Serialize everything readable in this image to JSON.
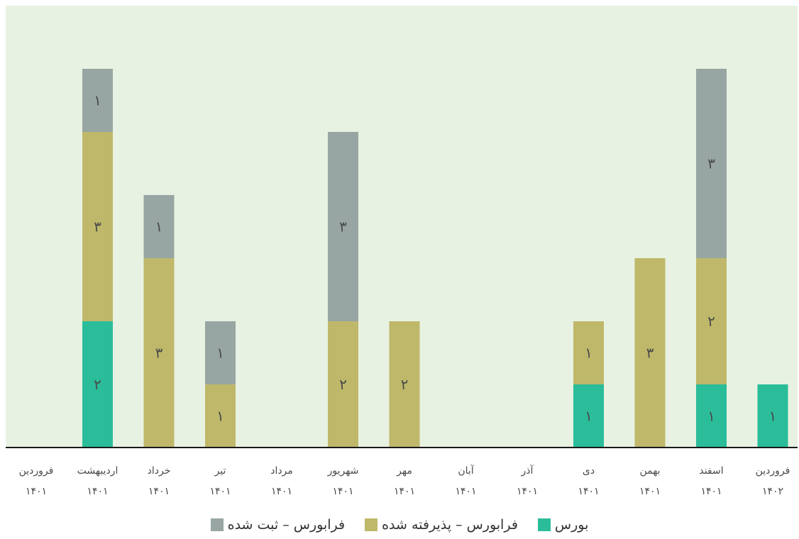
{
  "chart_data": {
    "type": "bar",
    "stacked": true,
    "title": "",
    "xlabel": "",
    "ylabel": "",
    "ylim": [
      0,
      6
    ],
    "grid": false,
    "legend_position": "bottom",
    "categories": [
      {
        "month": "فروردین",
        "year": "۱۴۰۱"
      },
      {
        "month": "اردیبهشت",
        "year": "۱۴۰۱"
      },
      {
        "month": "خرداد",
        "year": "۱۴۰۱"
      },
      {
        "month": "تیر",
        "year": "۱۴۰۱"
      },
      {
        "month": "مرداد",
        "year": "۱۴۰۱"
      },
      {
        "month": "شهریور",
        "year": "۱۴۰۱"
      },
      {
        "month": "مهر",
        "year": "۱۴۰۱"
      },
      {
        "month": "آبان",
        "year": "۱۴۰۱"
      },
      {
        "month": "آذر",
        "year": "۱۴۰۱"
      },
      {
        "month": "دی",
        "year": "۱۴۰۱"
      },
      {
        "month": "بهمن",
        "year": "۱۴۰۱"
      },
      {
        "month": "اسفند",
        "year": "۱۴۰۱"
      },
      {
        "month": "فروردین",
        "year": "۱۴۰۲"
      }
    ],
    "series": [
      {
        "name": "بورس",
        "color": "#2bbd9a",
        "values": [
          0,
          2,
          0,
          0,
          0,
          0,
          0,
          0,
          0,
          1,
          0,
          1,
          1
        ]
      },
      {
        "name": "فرابورس – پذیرفته شده",
        "color": "#bfb86a",
        "values": [
          0,
          3,
          3,
          1,
          0,
          2,
          2,
          0,
          0,
          1,
          3,
          2,
          0
        ]
      },
      {
        "name": "فرابورس – ثبت شده",
        "color": "#97a6a2",
        "values": [
          0,
          1,
          1,
          1,
          0,
          3,
          0,
          0,
          0,
          0,
          0,
          3,
          0
        ]
      }
    ],
    "segment_label_digits": [
      "۰",
      "۱",
      "۲",
      "۳",
      "۴",
      "۵",
      "۶"
    ],
    "plot_background": "#e8f2e2",
    "axis_color": "#1a1a1a"
  }
}
